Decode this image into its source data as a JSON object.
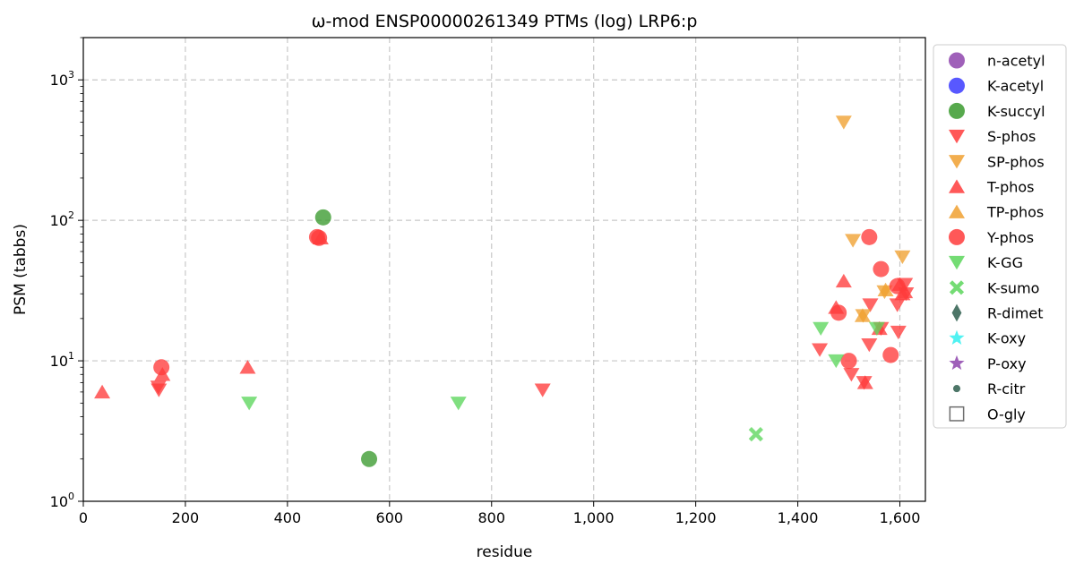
{
  "chart_data": {
    "type": "scatter",
    "title": "ω-mod ENSP00000261349 PTMs (log) LRP6:p",
    "xlabel": "residue",
    "ylabel": "PSM (tabbs)",
    "xlim": [
      0,
      1650
    ],
    "ylim": [
      1,
      2000
    ],
    "yscale": "log",
    "grid": true,
    "legend_position": "outside-right",
    "x_ticks": [
      0,
      200,
      400,
      600,
      800,
      1000,
      1200,
      1400,
      1600
    ],
    "x_tick_labels": [
      "0",
      "200",
      "400",
      "600",
      "800",
      "1,000",
      "1,200",
      "1,400",
      "1,600"
    ],
    "y_ticks": [
      1,
      10,
      100,
      1000
    ],
    "y_tick_labels": [
      {
        "base": "10",
        "exp": "0"
      },
      {
        "base": "10",
        "exp": "1"
      },
      {
        "base": "10",
        "exp": "2"
      },
      {
        "base": "10",
        "exp": "3"
      }
    ],
    "series": [
      {
        "name": "n-acetyl",
        "marker": "circle",
        "color": "#8e44ad",
        "points": []
      },
      {
        "name": "K-acetyl",
        "marker": "circle",
        "color": "#3b3bff",
        "points": []
      },
      {
        "name": "K-succyl",
        "marker": "circle",
        "color": "#3a9a2e",
        "points": [
          [
            470,
            105
          ],
          [
            560,
            2
          ]
        ]
      },
      {
        "name": "S-phos",
        "marker": "triangle-down",
        "color": "#ff3b3b",
        "points": [
          [
            147,
            6.5
          ],
          [
            148,
            6.2
          ],
          [
            900,
            6.2
          ],
          [
            1443,
            12
          ],
          [
            1505,
            8
          ],
          [
            1530,
            7
          ],
          [
            1540,
            13
          ],
          [
            1542,
            25
          ],
          [
            1563,
            17
          ],
          [
            1595,
            25
          ],
          [
            1597,
            16
          ],
          [
            1610,
            35
          ],
          [
            1612,
            30
          ]
        ]
      },
      {
        "name": "SP-phos",
        "marker": "triangle-down",
        "color": "#f0a030",
        "points": [
          [
            1490,
            500
          ],
          [
            1508,
            72
          ],
          [
            1528,
            21
          ],
          [
            1570,
            31
          ],
          [
            1605,
            55
          ]
        ]
      },
      {
        "name": "T-phos",
        "marker": "triangle-up",
        "color": "#ff3b3b",
        "points": [
          [
            37,
            6
          ],
          [
            155,
            8
          ],
          [
            322,
            9
          ],
          [
            465,
            75
          ],
          [
            1475,
            24
          ],
          [
            1490,
            37
          ],
          [
            1532,
            7
          ],
          [
            1560,
            17
          ],
          [
            1600,
            35
          ],
          [
            1605,
            30
          ],
          [
            1610,
            31
          ]
        ]
      },
      {
        "name": "TP-phos",
        "marker": "triangle-up",
        "color": "#f0a030",
        "points": [
          [
            1527,
            21
          ],
          [
            1572,
            32
          ]
        ]
      },
      {
        "name": "Y-phos",
        "marker": "circle",
        "color": "#ff3b3b",
        "points": [
          [
            153,
            9
          ],
          [
            458,
            76
          ],
          [
            462,
            75
          ],
          [
            1480,
            22
          ],
          [
            1500,
            10
          ],
          [
            1540,
            76
          ],
          [
            1563,
            45
          ],
          [
            1582,
            11
          ],
          [
            1595,
            34
          ]
        ]
      },
      {
        "name": "K-GG",
        "marker": "triangle-down",
        "color": "#5cd65c",
        "points": [
          [
            325,
            5
          ],
          [
            735,
            5
          ],
          [
            1445,
            17
          ],
          [
            1475,
            10
          ],
          [
            1555,
            17
          ]
        ]
      },
      {
        "name": "K-sumo",
        "marker": "x",
        "color": "#5cd65c",
        "points": [
          [
            1318,
            3
          ]
        ]
      },
      {
        "name": "R-dimet",
        "marker": "diamond",
        "color": "#2e5e4e",
        "points": []
      },
      {
        "name": "K-oxy",
        "marker": "star",
        "color": "#33f0f0",
        "points": []
      },
      {
        "name": "P-oxy",
        "marker": "star",
        "color": "#8e44ad",
        "points": []
      },
      {
        "name": "R-citr",
        "marker": "small-circle",
        "color": "#2e5e4e",
        "points": []
      },
      {
        "name": "O-gly",
        "marker": "square-open",
        "color": "#555555",
        "points": []
      }
    ]
  }
}
